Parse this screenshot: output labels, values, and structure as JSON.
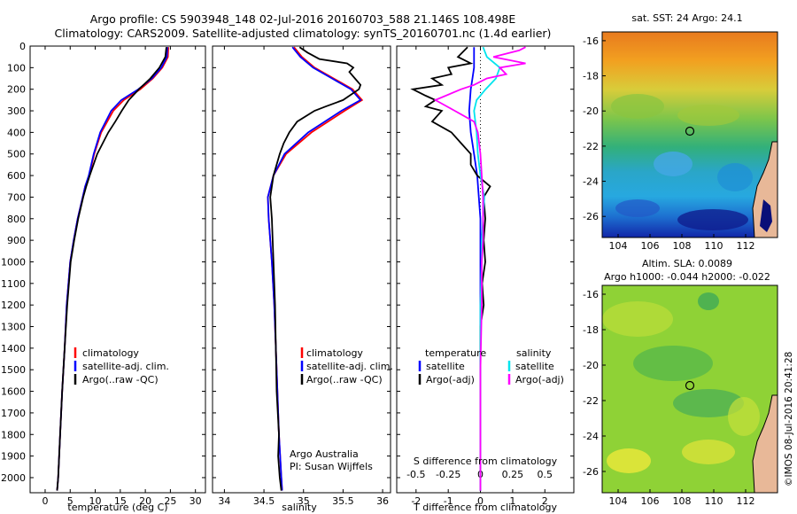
{
  "title_line1": "Argo profile: CS 5903948_148 02-Jul-2016 20160703_588 21.146S 108.498E",
  "title_line2": "Climatology: CARS2009. Satellite-adjusted climatology: synTS_20160701.nc (1.4d earlier)",
  "footer": "©IMOS 08-Jul-2016 20:41:28",
  "colors": {
    "climatology": "#ff0000",
    "satellite": "#0000ff",
    "argo": "#000000",
    "sat_sal": "#00e5ee",
    "argo_sal": "#ff00ff"
  },
  "depth_ticks": [
    "0",
    "100",
    "200",
    "300",
    "400",
    "500",
    "600",
    "700",
    "800",
    "900",
    "1000",
    "1100",
    "1200",
    "1300",
    "1400",
    "1500",
    "1600",
    "1700",
    "1800",
    "1900",
    "2000"
  ],
  "chart_data": [
    {
      "type": "line",
      "xlabel": "temperature (deg C)",
      "xticks": [
        "0",
        "5",
        "10",
        "15",
        "20",
        "25",
        "30"
      ],
      "xlim": [
        -3,
        32
      ],
      "ylim": [
        2070,
        0
      ],
      "legend": [
        "climatology",
        "satellite-adj. clim.",
        "Argo(..raw -QC)"
      ],
      "series": [
        {
          "name": "climatology",
          "depth": [
            5,
            50,
            100,
            150,
            200,
            250,
            300,
            400,
            500,
            600,
            650,
            700,
            800,
            900,
            1000,
            1200,
            1400,
            1600,
            1800,
            2000,
            2060
          ],
          "values": [
            24.6,
            24.5,
            23.4,
            21.5,
            19.0,
            15.7,
            13.6,
            11.2,
            9.8,
            8.8,
            8.0,
            7.5,
            6.5,
            5.7,
            5.0,
            4.3,
            3.9,
            3.4,
            3.0,
            2.6,
            2.4
          ]
        },
        {
          "name": "satellite-adj. clim.",
          "depth": [
            5,
            50,
            100,
            150,
            200,
            250,
            300,
            400,
            500,
            600,
            650,
            700,
            800,
            900,
            1000,
            1200,
            1400,
            1600,
            1800,
            2000,
            2060
          ],
          "values": [
            24.4,
            24.3,
            23.2,
            21.3,
            18.6,
            15.2,
            13.2,
            11.0,
            9.7,
            8.7,
            8.0,
            7.5,
            6.5,
            5.7,
            5.0,
            4.3,
            3.9,
            3.4,
            3.0,
            2.6,
            2.4
          ]
        },
        {
          "name": "Argo(..raw -QC)",
          "depth": [
            5,
            50,
            100,
            150,
            200,
            250,
            300,
            350,
            400,
            500,
            600,
            650,
            700,
            800,
            900,
            1000,
            1200,
            1400,
            1600,
            1800,
            2000,
            2060
          ],
          "values": [
            24.2,
            24.0,
            22.8,
            21.0,
            18.7,
            16.7,
            15.3,
            14.0,
            12.6,
            10.4,
            8.9,
            8.2,
            7.6,
            6.6,
            5.8,
            5.1,
            4.4,
            3.9,
            3.4,
            3.0,
            2.6,
            2.4
          ]
        }
      ]
    },
    {
      "type": "line",
      "xlabel": "salinity",
      "xticks": [
        "34",
        "34.5",
        "35",
        "35.5",
        "36"
      ],
      "xlim": [
        33.85,
        36.1
      ],
      "ylim": [
        2070,
        0
      ],
      "legend": [
        "climatology",
        "satellite-adj. clim.",
        "Argo(..raw -QC)"
      ],
      "annotation": [
        "Argo Australia",
        "PI: Susan Wijffels"
      ],
      "series": [
        {
          "name": "climatology",
          "depth": [
            5,
            50,
            100,
            150,
            200,
            250,
            300,
            400,
            500,
            600,
            700,
            800,
            1000,
            1200,
            1500,
            1800,
            2000,
            2060
          ],
          "values": [
            34.88,
            34.98,
            35.14,
            35.38,
            35.62,
            35.74,
            35.52,
            35.1,
            34.78,
            34.62,
            34.55,
            34.56,
            34.6,
            34.63,
            34.66,
            34.69,
            34.72,
            34.73
          ]
        },
        {
          "name": "satellite-adj. clim.",
          "depth": [
            5,
            50,
            100,
            150,
            200,
            250,
            300,
            400,
            500,
            600,
            700,
            800,
            1000,
            1200,
            1500,
            1800,
            2000,
            2060
          ],
          "values": [
            34.86,
            34.96,
            35.12,
            35.36,
            35.6,
            35.72,
            35.48,
            35.06,
            34.76,
            34.62,
            34.55,
            34.56,
            34.6,
            34.63,
            34.66,
            34.69,
            34.72,
            34.73
          ]
        },
        {
          "name": "Argo(..raw -QC)",
          "depth": [
            5,
            30,
            60,
            80,
            100,
            120,
            150,
            180,
            200,
            220,
            250,
            280,
            300,
            350,
            400,
            450,
            500,
            600,
            700,
            800,
            1000,
            1200,
            1400,
            1600,
            1800,
            1900,
            2000,
            2060
          ],
          "values": [
            34.95,
            35.05,
            35.2,
            35.55,
            35.63,
            35.58,
            35.65,
            35.72,
            35.7,
            35.62,
            35.5,
            35.28,
            35.14,
            34.92,
            34.82,
            34.75,
            34.7,
            34.62,
            34.58,
            34.6,
            34.62,
            34.64,
            34.65,
            34.66,
            34.69,
            34.68,
            34.7,
            34.72
          ]
        }
      ]
    },
    {
      "type": "line",
      "xlabel": "T difference from climatology",
      "xlabel_top": "S difference from climatology",
      "xticks": [
        "-2",
        "-1",
        "0",
        "1",
        "2"
      ],
      "xticks_top": [
        "-0.5",
        "-0.25",
        "0",
        "0.25",
        "0.5"
      ],
      "xlim": [
        -2.6,
        2.9
      ],
      "ylim": [
        2070,
        0
      ],
      "legend_titles": [
        "temperature",
        "salinity"
      ],
      "legend": [
        "satellite",
        "Argo(-adj)",
        "satellite",
        "Argo(-adj)"
      ],
      "series": [
        {
          "name": "satellite",
          "quantity": "temperature",
          "depth": [
            5,
            50,
            100,
            150,
            200,
            300,
            400,
            500,
            600,
            700,
            800,
            900,
            1000,
            1200,
            1500,
            1800,
            2060
          ],
          "values": [
            -0.2,
            -0.2,
            -0.2,
            -0.25,
            -0.3,
            -0.35,
            -0.3,
            -0.2,
            -0.1,
            -0.05,
            0.0,
            0.0,
            0.0,
            0.0,
            0.0,
            0.0,
            0.0
          ]
        },
        {
          "name": "Argo(-adj)",
          "quantity": "temperature",
          "depth": [
            5,
            50,
            80,
            100,
            130,
            150,
            180,
            200,
            230,
            250,
            280,
            300,
            350,
            400,
            450,
            500,
            550,
            600,
            650,
            700,
            800,
            900,
            1000,
            1100,
            1200,
            1300,
            1500,
            1800,
            2060
          ],
          "values": [
            -0.4,
            -0.7,
            -0.3,
            -1.0,
            -0.9,
            -1.5,
            -1.2,
            -2.1,
            -1.7,
            -1.4,
            -1.7,
            -1.2,
            -1.5,
            -0.9,
            -0.6,
            -0.3,
            -0.3,
            -0.1,
            0.3,
            0.1,
            0.15,
            0.1,
            0.15,
            0.05,
            0.1,
            0.0,
            0.0,
            0.0,
            0.0
          ]
        },
        {
          "name": "satellite",
          "quantity": "salinity",
          "depth": [
            5,
            50,
            100,
            150,
            200,
            250,
            300,
            400,
            500,
            600,
            700,
            800,
            900,
            1000,
            1200,
            1500,
            1800,
            2060
          ],
          "values": [
            0.02,
            0.05,
            0.15,
            0.12,
            0.04,
            -0.03,
            -0.05,
            -0.03,
            -0.02,
            0.0,
            0.03,
            0.02,
            0.01,
            0.01,
            0.0,
            0.0,
            0.0,
            0.0
          ]
        },
        {
          "name": "Argo(-adj)",
          "quantity": "salinity",
          "depth": [
            5,
            20,
            50,
            80,
            100,
            130,
            150,
            180,
            200,
            250,
            300,
            350,
            400,
            500,
            600,
            700,
            800,
            900,
            1000,
            1200,
            1500,
            1800,
            2060
          ],
          "values": [
            0.35,
            0.3,
            0.1,
            0.35,
            0.15,
            0.2,
            0.05,
            -0.05,
            -0.15,
            -0.35,
            -0.2,
            -0.05,
            -0.02,
            0.0,
            0.01,
            0.02,
            0.02,
            0.02,
            0.01,
            0.01,
            0.0,
            0.0,
            0.0
          ]
        }
      ]
    },
    {
      "type": "heatmap",
      "title": "sat. SST: 24 Argo: 24.1",
      "xticks": [
        "104",
        "106",
        "108",
        "110",
        "112"
      ],
      "yticks": [
        "-16",
        "-18",
        "-20",
        "-22",
        "-24",
        "-26"
      ],
      "xlim": [
        103,
        114
      ],
      "ylim": [
        -27.2,
        -15.5
      ],
      "marker": {
        "lon": 108.5,
        "lat": -21.15
      }
    },
    {
      "type": "heatmap",
      "title": "Altim. SLA: 0.0089",
      "subtitle": "Argo h1000: -0.044 h2000: -0.022",
      "xticks": [
        "104",
        "106",
        "108",
        "110",
        "112"
      ],
      "yticks": [
        "-16",
        "-18",
        "-20",
        "-22",
        "-24",
        "-26"
      ],
      "xlim": [
        103,
        114
      ],
      "ylim": [
        -27.2,
        -15.5
      ],
      "marker": {
        "lon": 108.5,
        "lat": -21.15
      }
    }
  ]
}
